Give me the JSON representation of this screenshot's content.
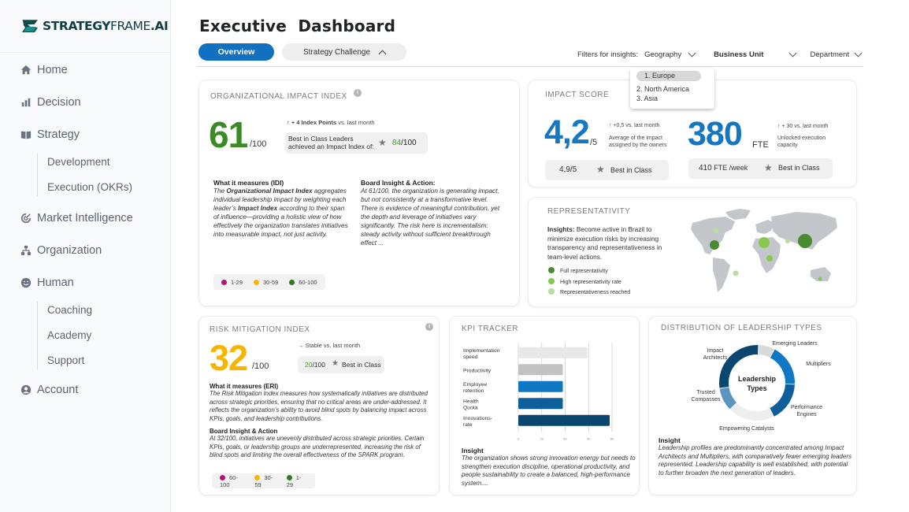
{
  "brand": {
    "name_bold": "STRATEGY",
    "name_light": "FRAME",
    "name_suffix": ".AI"
  },
  "sidebar": {
    "items": [
      {
        "label": "Home",
        "icon": "home-icon"
      },
      {
        "label": "Decision",
        "icon": "bar-chart-icon"
      },
      {
        "label": "Strategy",
        "icon": "book-icon"
      },
      {
        "label": "Market Intelligence",
        "icon": "radar-icon"
      },
      {
        "label": "Organization",
        "icon": "org-chart-icon"
      },
      {
        "label": "Human",
        "icon": "smiley-icon"
      },
      {
        "label": "Account",
        "icon": "user-circle-icon"
      }
    ],
    "strategy_sub": [
      "Development",
      "Execution (OKRs)"
    ],
    "human_sub": [
      "Coaching",
      "Academy",
      "Support"
    ]
  },
  "header": {
    "title": "Executive  Dashboard",
    "tabs": [
      {
        "label": "Overview",
        "active": true
      },
      {
        "label": "Strategy Challenge",
        "active": false
      }
    ],
    "filters_label": "Filters for insights:",
    "filters": [
      "Geography",
      "Business Unit",
      "Department"
    ],
    "geography_options": [
      "1. Europe",
      "2. North America",
      "3. Asia"
    ],
    "geography_selected": "1. Europe"
  },
  "oii": {
    "title": "ORGANIZATIONAL IMPACT INDEX",
    "value": "61",
    "max": "/100",
    "trend_arrow": "↑",
    "trend_bold": "+ 4 Index Points",
    "trend_suffix": "vs. last month",
    "best_line1": "Best in Class Leaders",
    "best_line2": "achieved an Impact Index of:",
    "best_value": "84",
    "best_max": "/100",
    "measures_heading": "What it measures (IDI)",
    "measures_text_1": "The ",
    "measures_bold_1": "Organizational Impact Index",
    "measures_text_2": " aggregates individual leadership impact by weighting each leader’s ",
    "measures_bold_2": "Impact Index",
    "measures_text_3": " according to their span of influence—providing a holistic view of how effectively the organization translates initiatives into measurable impact, not just activity.",
    "board_heading": "Board Insight & Action:",
    "board_text": "At 61/100, the organization is generating impact, but not consistently at a transformative level. There is evidence of meaningful contribution, yet the depth and leverage of initiatives vary significantly. The risk here is incrementalism: steady activity without sufficient breakthrough effect ...",
    "legend": [
      {
        "label": "1-29",
        "color": "#b5127a"
      },
      {
        "label": "30-59",
        "color": "#f5b800"
      },
      {
        "label": "60-100",
        "color": "#2e7d1e"
      }
    ],
    "value_color": "#3a8a25"
  },
  "impact_score": {
    "title": "IMPACT SCORE",
    "score_value": "4,2",
    "score_max": "/5",
    "score_trend": "↑  +0,5  vs. last month",
    "score_desc_1": "Average of the impact",
    "score_desc_2": "assigned by the owners",
    "score_best": "4,9/5",
    "best_label": "Best in Class",
    "fte_value": "380",
    "fte_unit": "FTE",
    "fte_trend": "↑  + 30  vs. last month",
    "fte_desc_1": "Unlocked execution",
    "fte_desc_2": "capacity",
    "fte_best_num": "410",
    "fte_best_unit": " FTE /week",
    "value_color": "#1576c2"
  },
  "representativity": {
    "title": "REPRESENTATIVITY",
    "insight_bold": "Insights:",
    "insight_text": " Become active in Brazil to minimize execution risks by increasing transparency and representativeness in team-level actions.",
    "legend": [
      {
        "label": "Full representativity",
        "color": "#4a8a32"
      },
      {
        "label": "High representativity rate",
        "color": "#86c94e"
      },
      {
        "label": "Representativeness reached",
        "color": "#b9dca0"
      }
    ],
    "markers": [
      {
        "region": "Canada",
        "level": "Representativeness reached"
      },
      {
        "region": "United States",
        "level": "Full representativity"
      },
      {
        "region": "Europe",
        "level": "High representativity rate"
      },
      {
        "region": "Central Asia",
        "level": "Representativeness reached"
      },
      {
        "region": "China",
        "level": "Full representativity"
      },
      {
        "region": "North Africa",
        "level": "High representativity rate"
      },
      {
        "region": "Brazil",
        "level": "Representativeness reached"
      },
      {
        "region": "Australia",
        "level": "High representativity rate"
      }
    ]
  },
  "rmi": {
    "title": "RISK MITIGATION INDEX",
    "value": "32",
    "max": "/100",
    "trend": "→ Stable vs. last month",
    "best_value": "20",
    "best_max": "/100",
    "best_label": "Best in Class",
    "measures_heading": "What it measures (ERI)",
    "measures_text": "The Risk Mitigation Index measures how systematically initiatives are distributed across strategic priorities, ensuring that no critical areas are under-addressed. It reflects the organization’s ability to avoid blind spots by balancing impact across KPIs, goals, and leadership contributions.",
    "board_heading": "Board Insight & Action",
    "board_text": "At 32/100, initiatives are unevenly distributed across strategic priorities. Certain KPIs, goals, or leadership groups are underrepresented, increasing the risk of blind spots and limiting the overall effectiveness of the  SPARK program.",
    "legend": [
      {
        "label": "60-100",
        "color": "#b5127a"
      },
      {
        "label": "30-59",
        "color": "#f5b800"
      },
      {
        "label": "1-29",
        "color": "#2e7d1e"
      }
    ],
    "value_color": "#f7b500"
  },
  "kpi": {
    "title": "KPI TRACKER",
    "insight_heading": "Insight",
    "insight_text": "The organization shows strong innovation energy but needs to strengthen execution discipline, operational productivity, and people sustainability to create a balanced, high-performance system...."
  },
  "chart_data": {
    "type": "bar",
    "orientation": "horizontal",
    "title": "KPI TRACKER",
    "categories": [
      "Implementation speed",
      "Productivity",
      "Employee retention",
      "Health Quota",
      "Innovations-rate"
    ],
    "category_lines": [
      [
        "Implementation",
        "speed"
      ],
      [
        "Productivity"
      ],
      [
        "Employee",
        "retention"
      ],
      [
        "Health",
        "Quota"
      ],
      [
        "Innovations-",
        "rate"
      ]
    ],
    "values": [
      59,
      38,
      38,
      38,
      78
    ],
    "colors": [
      "#e8e8e8",
      "#c2c2c2",
      "#1078c2",
      "#0c5f98",
      "#0a4670"
    ],
    "xlim": [
      0,
      80
    ],
    "xticks": [
      0,
      20,
      40,
      60,
      80
    ],
    "grid": true,
    "xlabel": "",
    "ylabel": ""
  },
  "leadership": {
    "title": "DISTRIBUTION OF LEADERSHIP TYPES",
    "center_line1": "Leadership",
    "center_line2": "Types",
    "segments": [
      {
        "label": "Emerging Leaders",
        "share": 7,
        "color": "#d9d9d9"
      },
      {
        "label": "Multipliers",
        "share": 18,
        "color": "#1078c2"
      },
      {
        "label": "Performance Engines",
        "share": 17,
        "color": "#0e5e9c"
      },
      {
        "label": "Empowering Catalysts",
        "share": 20,
        "color": "#eeeeee"
      },
      {
        "label": "Trusted Compasses",
        "share": 10,
        "color": "#5b94be"
      },
      {
        "label": "Impact Architects",
        "share": 28,
        "color": "#0a4670"
      }
    ],
    "insight_heading": "Insight",
    "insight_text": "Leadership profiles are predominantly concentrated among Impact Architects and Multipliers, with comparatively fewer emerging leaders represented. Leadership capability is well established, with potential to further broaden the next generation of leaders."
  }
}
